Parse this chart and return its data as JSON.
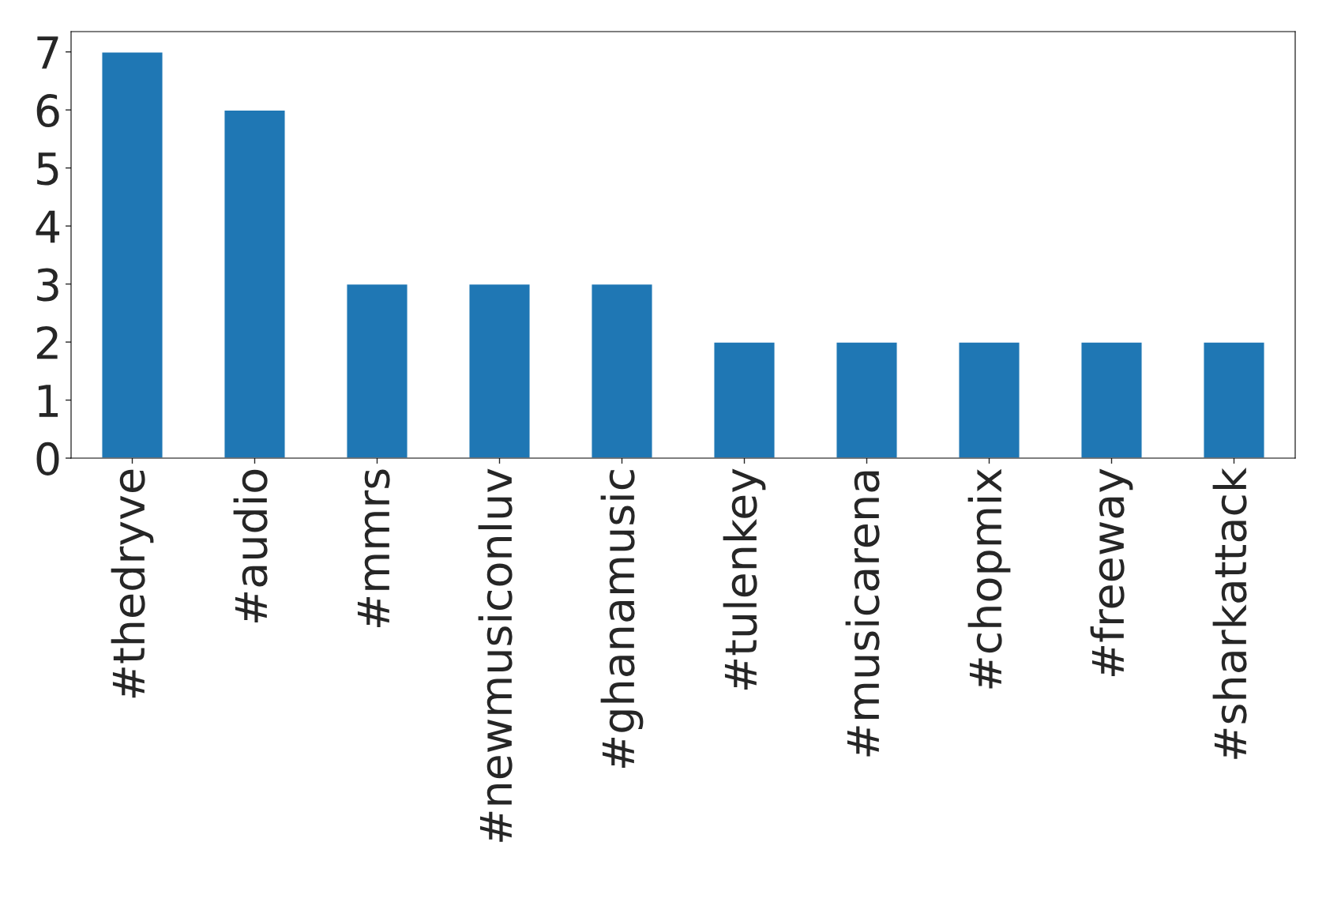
{
  "chart_data": {
    "type": "bar",
    "categories": [
      "#thedryve",
      "#audio",
      "#mmrs",
      "#newmusiconluv",
      "#ghanamusic",
      "#tulenkey",
      "#musicarena",
      "#chopmix",
      "#freeway",
      "#sharkattack"
    ],
    "values": [
      7,
      6,
      3,
      3,
      3,
      2,
      2,
      2,
      2,
      2
    ],
    "color": "#1f77b4",
    "ylim": [
      0,
      7.35
    ],
    "yticks": [
      0,
      1,
      2,
      3,
      4,
      5,
      6,
      7
    ],
    "grid": false
  }
}
